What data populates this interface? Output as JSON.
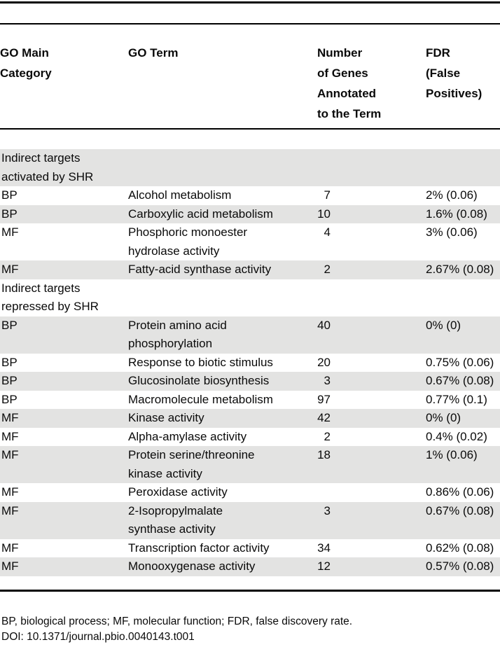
{
  "table": {
    "header": {
      "category": "GO Main\nCategory",
      "term": "GO Term",
      "genes": "Number\nof Genes\nAnnotated\nto the Term",
      "fdr": "FDR\n(False\nPositives)"
    },
    "rows": [
      {
        "section": true,
        "category": "Indirect targets\nactivated by SHR",
        "term": "",
        "genes": "",
        "fdr": ""
      },
      {
        "section": false,
        "category": "BP",
        "term": "Alcohol metabolism",
        "genes": "7",
        "fdr": "2% (0.06)"
      },
      {
        "section": false,
        "category": "BP",
        "term": "Carboxylic acid metabolism",
        "genes": "10",
        "fdr": "1.6% (0.08)"
      },
      {
        "section": false,
        "category": "MF",
        "term": "Phosphoric monoester\nhydrolase activity",
        "genes": "4",
        "fdr": "3% (0.06)"
      },
      {
        "section": false,
        "category": "MF",
        "term": "Fatty-acid synthase activity",
        "genes": "2",
        "fdr": "2.67% (0.08)"
      },
      {
        "section": true,
        "category": "Indirect targets\nrepressed by SHR",
        "term": "",
        "genes": "",
        "fdr": ""
      },
      {
        "section": false,
        "category": "BP",
        "term": "Protein amino acid\nphosphorylation",
        "genes": "40",
        "fdr": "0% (0)"
      },
      {
        "section": false,
        "category": "BP",
        "term": "Response to biotic stimulus",
        "genes": "20",
        "fdr": "0.75% (0.06)"
      },
      {
        "section": false,
        "category": "BP",
        "term": "Glucosinolate biosynthesis",
        "genes": "3",
        "fdr": "0.67% (0.08)"
      },
      {
        "section": false,
        "category": "BP",
        "term": "Macromolecule metabolism",
        "genes": "97",
        "fdr": "0.77% (0.1)"
      },
      {
        "section": false,
        "category": "MF",
        "term": "Kinase activity",
        "genes": "42",
        "fdr": "0% (0)"
      },
      {
        "section": false,
        "category": "MF",
        "term": "Alpha-amylase activity",
        "genes": "2",
        "fdr": "0.4% (0.02)"
      },
      {
        "section": false,
        "category": "MF",
        "term": "Protein serine/threonine\nkinase activity",
        "genes": "18",
        "fdr": "1% (0.06)"
      },
      {
        "section": false,
        "category": "MF",
        "term": "Peroxidase activity",
        "genes": "",
        "fdr": "0.86% (0.06)"
      },
      {
        "section": false,
        "category": "MF",
        "term": "2-Isopropylmalate\nsynthase activity",
        "genes": "3",
        "fdr": "0.67% (0.08)"
      },
      {
        "section": false,
        "category": "MF",
        "term": "Transcription factor activity",
        "genes": "34",
        "fdr": "0.62% (0.08)"
      },
      {
        "section": false,
        "category": "MF",
        "term": "Monooxygenase activity",
        "genes": "12",
        "fdr": "0.57% (0.08)"
      }
    ],
    "footnote": "BP, biological process; MF, molecular function; FDR, false discovery rate.",
    "doi": "DOI: 10.1371/journal.pbio.0040143.t001",
    "colors": {
      "stripe": "#e3e3e2",
      "rule": "#000000",
      "text": "#0a0a0a"
    }
  }
}
